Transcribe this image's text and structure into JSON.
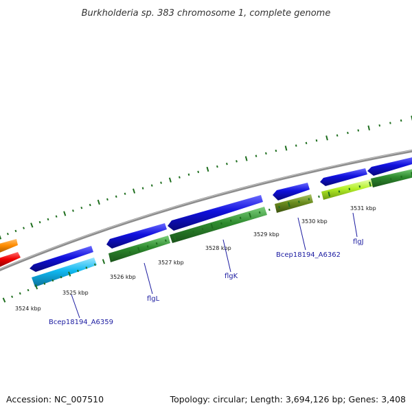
{
  "title": "Burkholderia sp. 383 chromosome 1, complete genome",
  "footer": {
    "accession": "Accession: NC_007510",
    "summary": "Topology: circular; Length: 3,694,126 bp; Genes: 3,408"
  },
  "scale_labels": [
    "3524 kbp",
    "3525 kbp",
    "3526 kbp",
    "3527 kbp",
    "3528 kbp",
    "3529 kbp",
    "3530 kbp",
    "3531 kbp"
  ],
  "gene_labels": [
    "Bcep18194_A6359",
    "flgL",
    "flgK",
    "Bcep18194_A6362",
    "flgJ"
  ],
  "colors": {
    "backbone": "#8c8c8c",
    "tick": "#1e6e1e",
    "cds": "#1010dd",
    "gene_green": "#2e8b2e",
    "gene_cyan": "#10b8f0",
    "gene_olive": "#6b8c1e",
    "gene_lime": "#b4f028",
    "gene_orange": "#ff8c00",
    "gene_red": "#ee0000",
    "label": "#1a1aa0"
  }
}
